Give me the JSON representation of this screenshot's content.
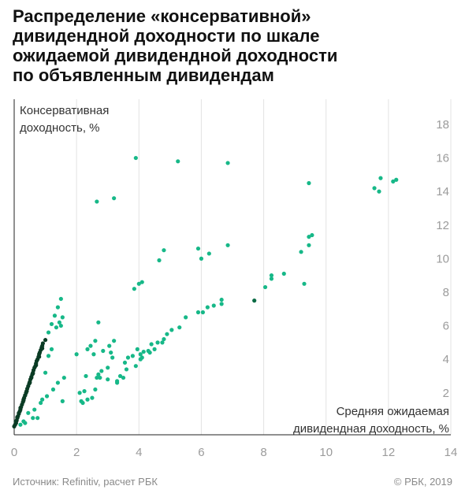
{
  "title_lines": [
    "Распределение «консервативной»",
    "дивидендной доходности по шкале",
    "ожидаемой дивидендной доходности",
    "по объявленным дивидендам"
  ],
  "footer": {
    "source": "Источник: Refinitiv, расчет РБК",
    "copyright": "© РБК, 2019"
  },
  "colors": {
    "point": "#17b888",
    "point_dark": "#0b6b45",
    "point_darkest": "#0a3b24",
    "axis": "#222222",
    "grid": "#e3e3e3",
    "tick_label": "#9b9b9b",
    "label": "#333333"
  },
  "chart_data": {
    "type": "scatter",
    "xlabel_lines": [
      "Средняя ожидаемая",
      "дивидендная доходность, %"
    ],
    "ylabel_lines": [
      "Консервативная",
      "доходность, %"
    ],
    "x_ticks": [
      0,
      2,
      4,
      6,
      8,
      10,
      12,
      14
    ],
    "y_ticks": [
      2,
      4,
      6,
      8,
      10,
      12,
      14,
      16,
      18
    ],
    "xlim": [
      0,
      14
    ],
    "ylim": [
      -0.5,
      19.5
    ],
    "grid": "vertical",
    "x": [
      0.0,
      0.03,
      0.06,
      0.08,
      0.1,
      0.12,
      0.15,
      0.18,
      0.2,
      0.22,
      0.25,
      0.28,
      0.3,
      0.32,
      0.35,
      0.38,
      0.4,
      0.42,
      0.45,
      0.48,
      0.5,
      0.52,
      0.55,
      0.58,
      0.6,
      0.62,
      0.65,
      0.68,
      0.7,
      0.72,
      0.75,
      0.78,
      0.8,
      0.82,
      0.85,
      0.88,
      0.9,
      0.92,
      0.05,
      0.1,
      0.15,
      0.2,
      0.3,
      0.35,
      0.4,
      0.5,
      0.55,
      0.6,
      0.7,
      0.8,
      0.9,
      1.0,
      1.1,
      1.2,
      1.3,
      1.4,
      1.5,
      0.2,
      0.3,
      0.45,
      0.6,
      0.75,
      0.9,
      1.0,
      1.1,
      1.2,
      1.35,
      1.45,
      1.55,
      0.35,
      0.65,
      0.85,
      1.05,
      1.25,
      1.4,
      1.55,
      1.5,
      1.6,
      2.0,
      2.1,
      2.15,
      2.25,
      2.3,
      2.45,
      2.55,
      2.7,
      2.85,
      3.0,
      3.1,
      3.3,
      3.5,
      3.65,
      3.8,
      3.95,
      4.05,
      4.15,
      4.3,
      4.4,
      4.5,
      4.6,
      4.8,
      2.2,
      2.35,
      2.5,
      2.6,
      2.65,
      2.75,
      2.8,
      3.0,
      3.05,
      3.2,
      3.3,
      3.4,
      3.6,
      3.9,
      4.05,
      4.1,
      4.35,
      4.75,
      4.9,
      5.05,
      5.3,
      5.5,
      5.9,
      6.05,
      6.2,
      6.4,
      6.65,
      6.65,
      2.35,
      2.6,
      2.7,
      3.15,
      3.55,
      3.85,
      4.0,
      4.1,
      4.65,
      4.8,
      5.9,
      6.0,
      6.25,
      6.85,
      3.2,
      2.65,
      3.9,
      5.25,
      6.85,
      7.7,
      8.05,
      8.25,
      8.25,
      8.65,
      9.2,
      9.3,
      9.45,
      9.45,
      9.55,
      9.45,
      11.55,
      11.7,
      11.75,
      12.15,
      12.25
    ],
    "y": [
      0.0,
      0.1,
      0.2,
      0.35,
      0.5,
      0.6,
      0.75,
      0.9,
      1.0,
      1.15,
      1.3,
      1.45,
      1.55,
      1.7,
      1.85,
      2.0,
      2.1,
      2.25,
      2.4,
      2.55,
      2.65,
      2.8,
      2.95,
      3.1,
      3.2,
      3.35,
      3.5,
      3.6,
      3.75,
      3.9,
      4.0,
      4.15,
      4.3,
      4.4,
      4.55,
      4.7,
      4.8,
      4.95,
      0.3,
      0.55,
      0.8,
      1.1,
      1.6,
      1.85,
      2.1,
      2.6,
      2.9,
      3.15,
      3.65,
      4.15,
      4.65,
      5.15,
      5.6,
      6.1,
      6.6,
      7.1,
      7.6,
      0.1,
      0.3,
      0.8,
      0.5,
      0.5,
      1.6,
      3.2,
      4.2,
      4.6,
      5.9,
      6.2,
      6.5,
      0.2,
      1.0,
      1.4,
      1.8,
      2.2,
      2.6,
      1.5,
      6.0,
      2.9,
      4.3,
      2.0,
      1.5,
      2.1,
      3.0,
      4.8,
      4.3,
      3.1,
      4.5,
      2.8,
      4.4,
      2.6,
      2.9,
      4.1,
      4.2,
      4.6,
      4.3,
      4.45,
      4.5,
      4.9,
      4.6,
      5.0,
      5.2,
      1.4,
      1.6,
      1.7,
      2.2,
      2.9,
      2.9,
      3.3,
      3.5,
      4.8,
      5.1,
      2.7,
      3.0,
      3.4,
      3.6,
      4.0,
      4.1,
      4.4,
      5.0,
      5.5,
      5.75,
      5.9,
      6.5,
      6.8,
      6.8,
      7.1,
      7.2,
      7.55,
      7.3,
      4.6,
      5.1,
      6.2,
      4.1,
      3.8,
      8.2,
      8.5,
      8.6,
      9.9,
      10.5,
      10.6,
      10.0,
      10.3,
      10.8,
      13.6,
      13.4,
      16.0,
      15.8,
      15.7,
      7.5,
      8.3,
      8.8,
      9.0,
      9.1,
      10.4,
      8.5,
      10.8,
      11.3,
      11.4,
      14.5,
      14.2,
      14.0,
      14.8,
      14.6,
      14.7
    ]
  }
}
